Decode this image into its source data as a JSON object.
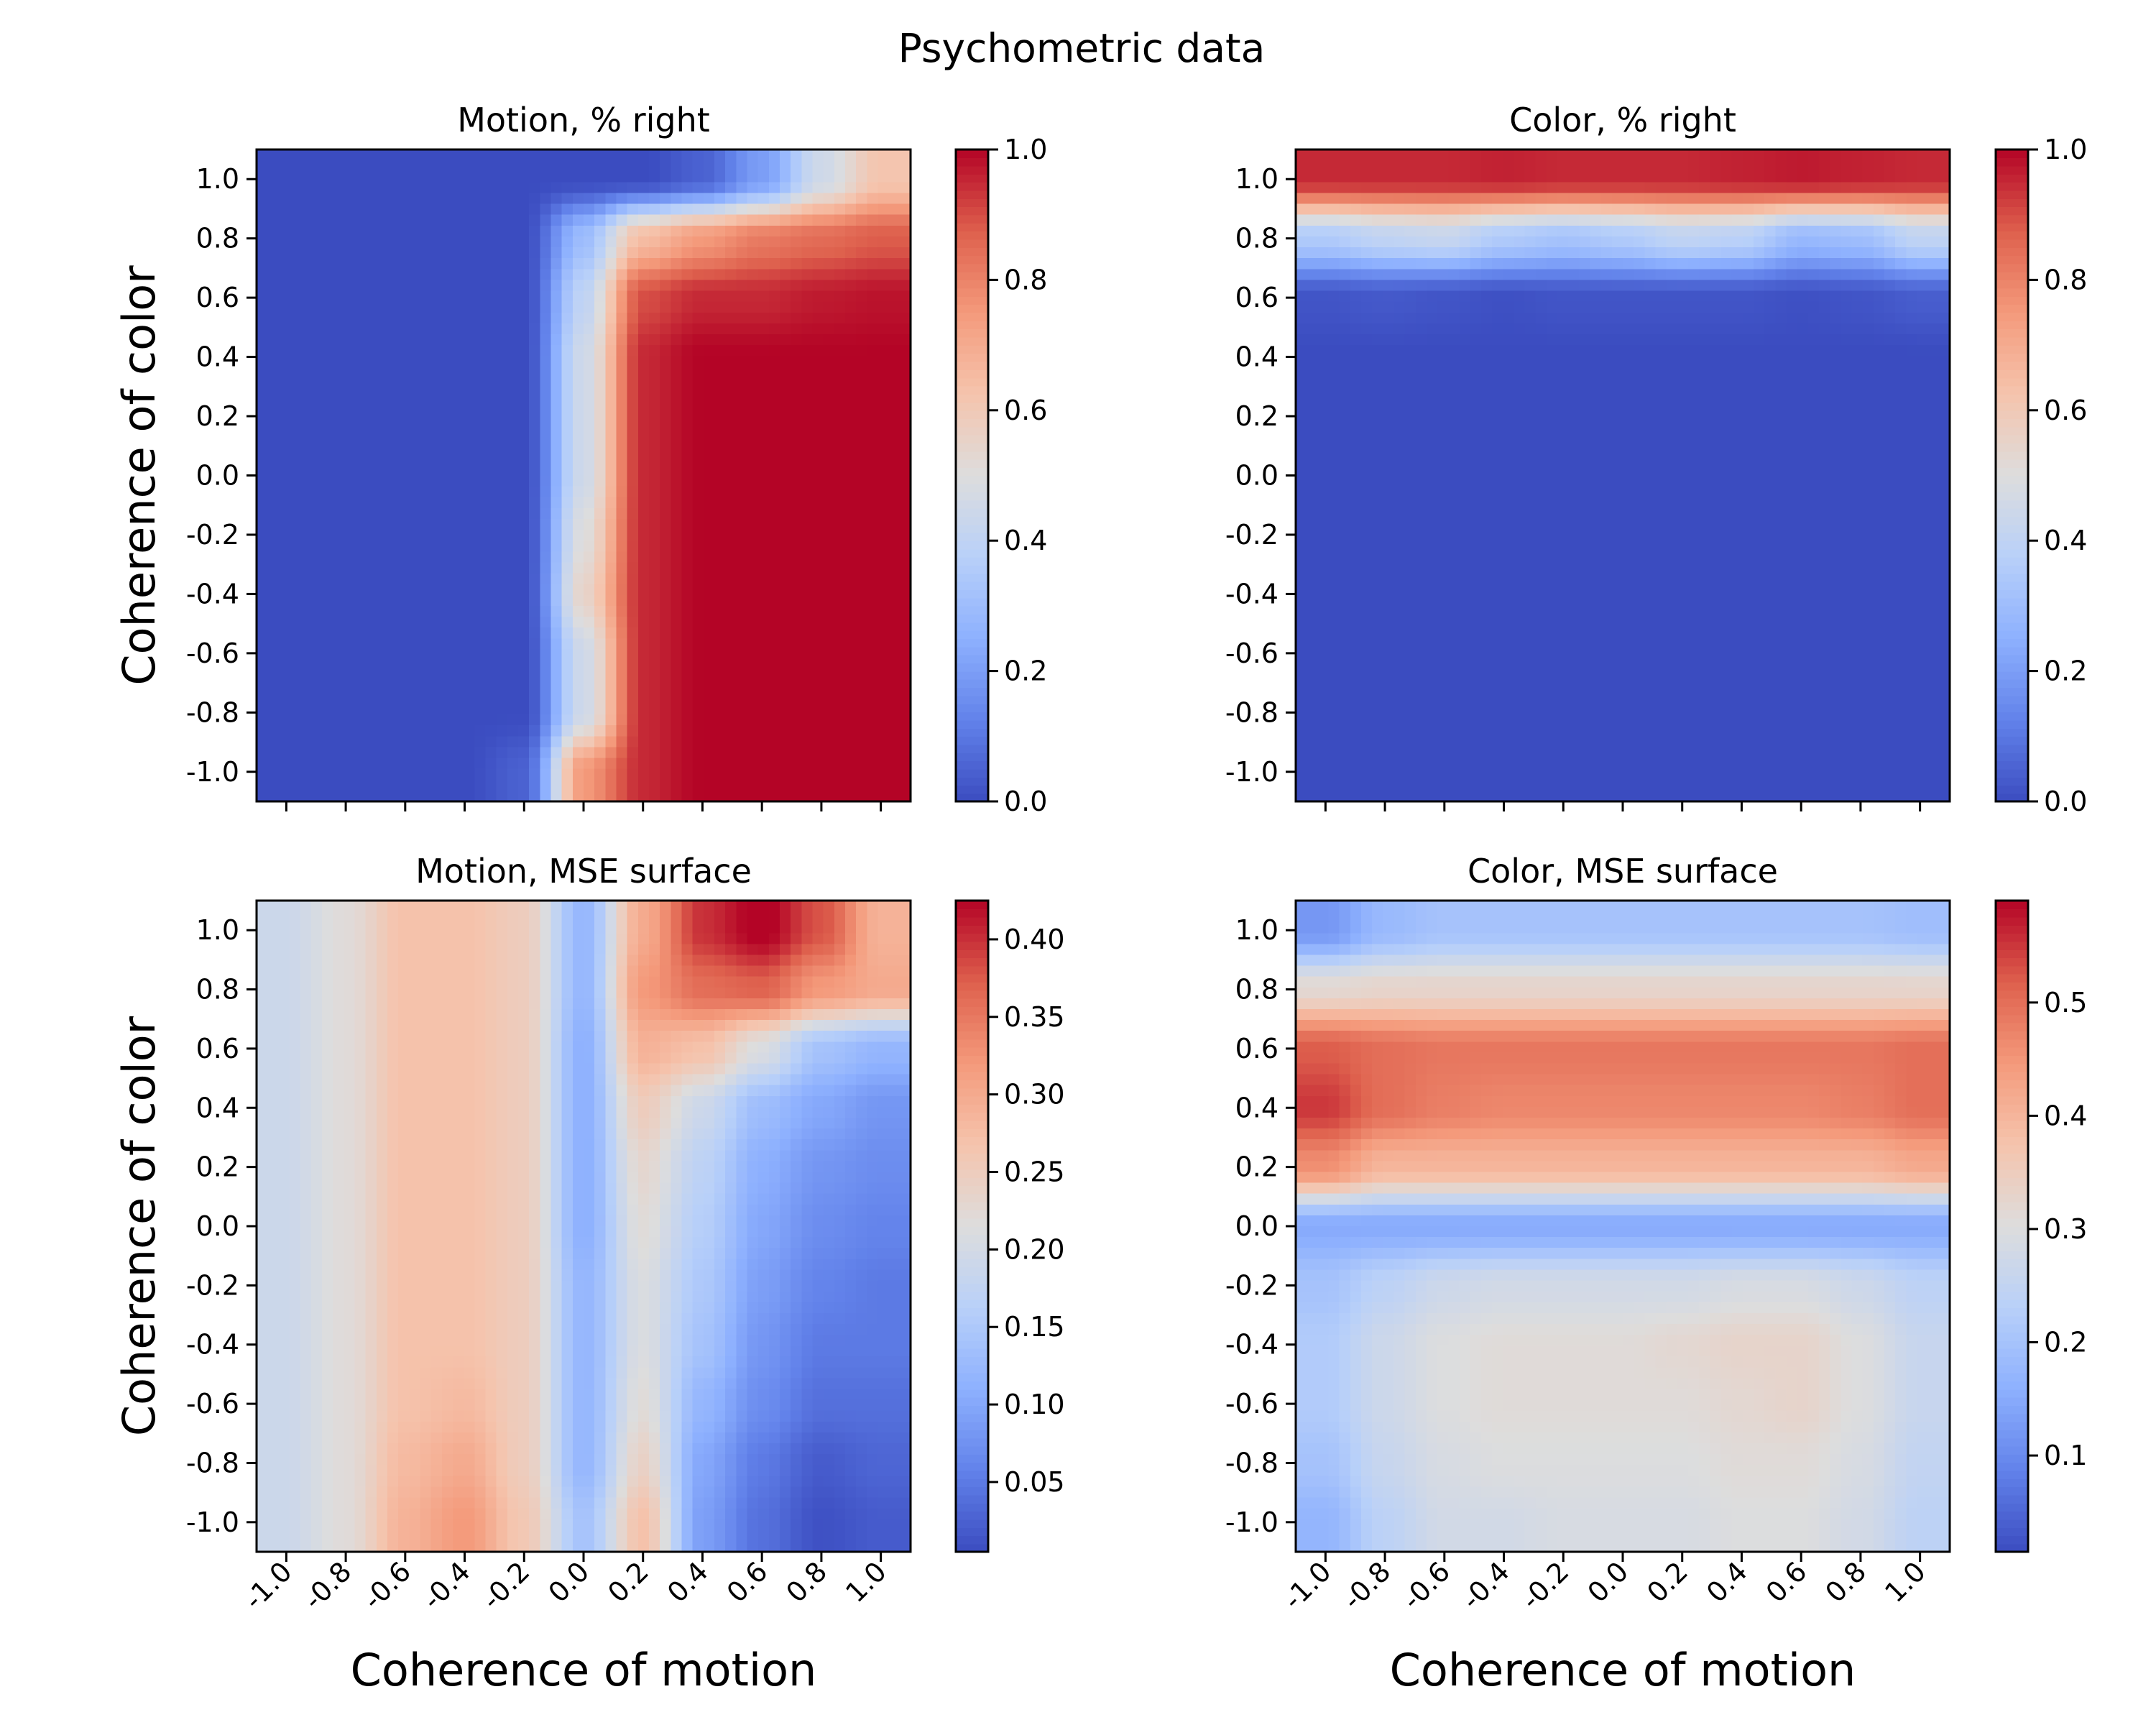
{
  "suptitle": "Psychometric data",
  "shared": {
    "xlabel": "Coherence of motion",
    "ylabel": "Coherence of color",
    "x_ticks": [
      "-1.0",
      "-0.8",
      "-0.6",
      "-0.4",
      "-0.2",
      "0.0",
      "0.2",
      "0.4",
      "0.6",
      "0.8",
      "1.0"
    ],
    "y_ticks": [
      "-1.0",
      "-0.8",
      "-0.6",
      "-0.4",
      "-0.2",
      "0.0",
      "0.2",
      "0.4",
      "0.6",
      "0.8",
      "1.0"
    ],
    "colormap": "coolwarm",
    "colors": {
      "low": "#3b4cc0",
      "mid": "#dddddd",
      "high": "#b40426"
    }
  },
  "chart_data": [
    {
      "type": "heatmap",
      "title": "Motion, % right",
      "xlabel": "",
      "ylabel": "Coherence of color",
      "xlim": [
        -1.1,
        1.1
      ],
      "ylim": [
        -1.1,
        1.1
      ],
      "x": [
        -1.0,
        -0.8,
        -0.6,
        -0.4,
        -0.2,
        0.0,
        0.2,
        0.4,
        0.6,
        0.8,
        1.0
      ],
      "y": [
        -1.0,
        -0.8,
        -0.6,
        -0.4,
        -0.2,
        0.0,
        0.2,
        0.4,
        0.6,
        0.8,
        1.0
      ],
      "values": [
        [
          0.0,
          0.0,
          0.0,
          0.0,
          0.05,
          0.75,
          0.95,
          1.0,
          1.0,
          1.0,
          1.0
        ],
        [
          0.0,
          0.0,
          0.0,
          0.0,
          0.0,
          0.45,
          0.95,
          1.0,
          1.0,
          1.0,
          1.0
        ],
        [
          0.0,
          0.0,
          0.0,
          0.0,
          0.0,
          0.45,
          0.95,
          1.0,
          1.0,
          1.0,
          1.0
        ],
        [
          0.0,
          0.0,
          0.0,
          0.0,
          0.0,
          0.55,
          0.95,
          1.0,
          1.0,
          1.0,
          1.0
        ],
        [
          0.0,
          0.0,
          0.0,
          0.0,
          0.0,
          0.5,
          0.95,
          1.0,
          1.0,
          1.0,
          1.0
        ],
        [
          0.0,
          0.0,
          0.0,
          0.0,
          0.0,
          0.45,
          0.95,
          1.0,
          1.0,
          1.0,
          1.0
        ],
        [
          0.0,
          0.0,
          0.0,
          0.0,
          0.0,
          0.45,
          0.95,
          1.0,
          1.0,
          1.0,
          1.0
        ],
        [
          0.0,
          0.0,
          0.0,
          0.0,
          0.0,
          0.45,
          0.95,
          1.0,
          1.0,
          1.0,
          1.0
        ],
        [
          0.0,
          0.0,
          0.0,
          0.0,
          0.0,
          0.4,
          0.9,
          0.95,
          0.95,
          0.97,
          0.98
        ],
        [
          0.0,
          0.0,
          0.0,
          0.0,
          0.0,
          0.3,
          0.65,
          0.75,
          0.82,
          0.85,
          0.88
        ],
        [
          0.0,
          0.0,
          0.0,
          0.0,
          0.0,
          0.0,
          0.0,
          0.05,
          0.2,
          0.45,
          0.62
        ]
      ],
      "colorbar": {
        "min": 0.0,
        "max": 1.0,
        "ticks": [
          0.0,
          0.2,
          0.4,
          0.6,
          0.8,
          1.0
        ],
        "tick_labels": [
          "0.0",
          "0.2",
          "0.4",
          "0.6",
          "0.8",
          "1.0"
        ]
      },
      "show_xticklabels": false
    },
    {
      "type": "heatmap",
      "title": "Color, % right",
      "xlabel": "",
      "ylabel": "",
      "xlim": [
        -1.1,
        1.1
      ],
      "ylim": [
        -1.1,
        1.1
      ],
      "x": [
        -1.0,
        -0.8,
        -0.6,
        -0.4,
        -0.2,
        0.0,
        0.2,
        0.4,
        0.6,
        0.8,
        1.0
      ],
      "y": [
        -1.0,
        -0.8,
        -0.6,
        -0.4,
        -0.2,
        0.0,
        0.2,
        0.4,
        0.6,
        0.8,
        1.0
      ],
      "values": [
        [
          0.0,
          0.0,
          0.0,
          0.0,
          0.0,
          0.0,
          0.0,
          0.0,
          0.0,
          0.0,
          0.0
        ],
        [
          0.0,
          0.0,
          0.0,
          0.0,
          0.0,
          0.0,
          0.0,
          0.0,
          0.0,
          0.0,
          0.0
        ],
        [
          0.0,
          0.0,
          0.0,
          0.0,
          0.0,
          0.0,
          0.0,
          0.0,
          0.0,
          0.0,
          0.0
        ],
        [
          0.0,
          0.0,
          0.0,
          0.0,
          0.0,
          0.0,
          0.0,
          0.0,
          0.0,
          0.0,
          0.0
        ],
        [
          0.0,
          0.0,
          0.0,
          0.0,
          0.0,
          0.0,
          0.0,
          0.0,
          0.0,
          0.0,
          0.0
        ],
        [
          0.0,
          0.0,
          0.0,
          0.0,
          0.0,
          0.0,
          0.0,
          0.0,
          0.0,
          0.0,
          0.0
        ],
        [
          0.0,
          0.0,
          0.0,
          0.0,
          0.0,
          0.0,
          0.0,
          0.0,
          0.0,
          0.0,
          0.0
        ],
        [
          0.0,
          0.0,
          0.0,
          0.0,
          0.0,
          0.0,
          0.0,
          0.0,
          0.0,
          0.0,
          0.0
        ],
        [
          0.02,
          0.03,
          0.02,
          0.01,
          0.02,
          0.02,
          0.02,
          0.02,
          0.01,
          0.02,
          0.04
        ],
        [
          0.35,
          0.4,
          0.42,
          0.35,
          0.32,
          0.35,
          0.4,
          0.38,
          0.28,
          0.3,
          0.4
        ],
        [
          0.95,
          0.95,
          0.95,
          0.96,
          0.95,
          0.95,
          0.95,
          0.96,
          0.97,
          0.96,
          0.95
        ]
      ],
      "colorbar": {
        "min": 0.0,
        "max": 1.0,
        "ticks": [
          0.0,
          0.2,
          0.4,
          0.6,
          0.8,
          1.0
        ],
        "tick_labels": [
          "0.0",
          "0.2",
          "0.4",
          "0.6",
          "0.8",
          "1.0"
        ]
      },
      "show_xticklabels": false
    },
    {
      "type": "heatmap",
      "title": "Motion, MSE surface",
      "xlabel": "Coherence of motion",
      "ylabel": "Coherence of color",
      "xlim": [
        -1.1,
        1.1
      ],
      "ylim": [
        -1.1,
        1.1
      ],
      "x": [
        -1.0,
        -0.8,
        -0.6,
        -0.4,
        -0.2,
        0.0,
        0.2,
        0.4,
        0.6,
        0.8,
        1.0
      ],
      "y": [
        -1.0,
        -0.8,
        -0.6,
        -0.4,
        -0.2,
        0.0,
        0.2,
        0.4,
        0.6,
        0.8,
        1.0
      ],
      "values": [
        [
          0.19,
          0.22,
          0.29,
          0.32,
          0.26,
          0.14,
          0.27,
          0.09,
          0.04,
          0.01,
          0.02
        ],
        [
          0.19,
          0.22,
          0.28,
          0.3,
          0.25,
          0.12,
          0.24,
          0.1,
          0.05,
          0.02,
          0.03
        ],
        [
          0.19,
          0.22,
          0.27,
          0.28,
          0.25,
          0.12,
          0.22,
          0.12,
          0.07,
          0.04,
          0.04
        ],
        [
          0.19,
          0.22,
          0.27,
          0.27,
          0.25,
          0.12,
          0.21,
          0.14,
          0.08,
          0.05,
          0.05
        ],
        [
          0.19,
          0.22,
          0.27,
          0.27,
          0.25,
          0.12,
          0.21,
          0.15,
          0.09,
          0.06,
          0.05
        ],
        [
          0.19,
          0.22,
          0.27,
          0.27,
          0.25,
          0.11,
          0.22,
          0.16,
          0.1,
          0.07,
          0.06
        ],
        [
          0.19,
          0.22,
          0.27,
          0.27,
          0.25,
          0.11,
          0.23,
          0.17,
          0.11,
          0.08,
          0.07
        ],
        [
          0.19,
          0.22,
          0.27,
          0.27,
          0.25,
          0.11,
          0.25,
          0.19,
          0.13,
          0.1,
          0.08
        ],
        [
          0.19,
          0.22,
          0.27,
          0.27,
          0.25,
          0.11,
          0.29,
          0.27,
          0.21,
          0.14,
          0.12
        ],
        [
          0.19,
          0.22,
          0.27,
          0.27,
          0.25,
          0.12,
          0.32,
          0.36,
          0.37,
          0.32,
          0.3
        ],
        [
          0.19,
          0.22,
          0.27,
          0.27,
          0.25,
          0.12,
          0.3,
          0.4,
          0.43,
          0.38,
          0.29
        ]
      ],
      "colorbar": {
        "min": 0.005,
        "max": 0.425,
        "ticks": [
          0.05,
          0.1,
          0.15,
          0.2,
          0.25,
          0.3,
          0.35,
          0.4
        ],
        "tick_labels": [
          "0.05",
          "0.10",
          "0.15",
          "0.20",
          "0.25",
          "0.30",
          "0.35",
          "0.40"
        ]
      },
      "show_xticklabels": true
    },
    {
      "type": "heatmap",
      "title": "Color, MSE surface",
      "xlabel": "Coherence of motion",
      "ylabel": "",
      "xlim": [
        -1.1,
        1.1
      ],
      "ylim": [
        -1.1,
        1.1
      ],
      "x": [
        -1.0,
        -0.8,
        -0.6,
        -0.4,
        -0.2,
        0.0,
        0.2,
        0.4,
        0.6,
        0.8,
        1.0
      ],
      "y": [
        -1.0,
        -0.8,
        -0.6,
        -0.4,
        -0.2,
        0.0,
        0.2,
        0.4,
        0.6,
        0.8,
        1.0
      ],
      "values": [
        [
          0.17,
          0.24,
          0.28,
          0.28,
          0.29,
          0.29,
          0.29,
          0.3,
          0.3,
          0.28,
          0.24
        ],
        [
          0.2,
          0.26,
          0.29,
          0.3,
          0.3,
          0.3,
          0.3,
          0.31,
          0.31,
          0.29,
          0.25
        ],
        [
          0.22,
          0.27,
          0.3,
          0.31,
          0.31,
          0.31,
          0.31,
          0.32,
          0.33,
          0.3,
          0.26
        ],
        [
          0.22,
          0.27,
          0.3,
          0.31,
          0.31,
          0.31,
          0.32,
          0.33,
          0.33,
          0.3,
          0.26
        ],
        [
          0.2,
          0.24,
          0.27,
          0.28,
          0.28,
          0.28,
          0.28,
          0.29,
          0.29,
          0.27,
          0.24
        ],
        [
          0.15,
          0.15,
          0.15,
          0.15,
          0.15,
          0.15,
          0.15,
          0.15,
          0.15,
          0.15,
          0.15
        ],
        [
          0.46,
          0.4,
          0.4,
          0.4,
          0.4,
          0.4,
          0.4,
          0.4,
          0.4,
          0.4,
          0.42
        ],
        [
          0.55,
          0.5,
          0.48,
          0.47,
          0.47,
          0.47,
          0.47,
          0.47,
          0.47,
          0.48,
          0.5
        ],
        [
          0.52,
          0.5,
          0.49,
          0.49,
          0.49,
          0.49,
          0.49,
          0.49,
          0.49,
          0.49,
          0.5
        ],
        [
          0.32,
          0.33,
          0.33,
          0.33,
          0.33,
          0.33,
          0.33,
          0.33,
          0.33,
          0.33,
          0.33
        ],
        [
          0.12,
          0.18,
          0.2,
          0.2,
          0.2,
          0.2,
          0.2,
          0.2,
          0.2,
          0.2,
          0.19
        ]
      ],
      "colorbar": {
        "min": 0.015,
        "max": 0.59,
        "ticks": [
          0.1,
          0.2,
          0.3,
          0.4,
          0.5
        ],
        "tick_labels": [
          "0.1",
          "0.2",
          "0.3",
          "0.4",
          "0.5"
        ]
      },
      "show_xticklabels": true
    }
  ]
}
